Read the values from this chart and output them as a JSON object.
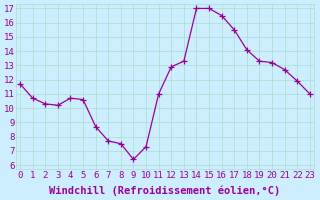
{
  "x": [
    0,
    1,
    2,
    3,
    4,
    5,
    6,
    7,
    8,
    9,
    10,
    11,
    12,
    13,
    14,
    15,
    16,
    17,
    18,
    19,
    20,
    21,
    22,
    23
  ],
  "y": [
    11.7,
    10.7,
    10.3,
    10.2,
    10.7,
    10.6,
    8.7,
    7.7,
    7.5,
    6.4,
    7.3,
    11.0,
    12.9,
    13.3,
    17.0,
    17.0,
    16.5,
    15.5,
    14.1,
    13.3,
    13.2,
    12.7,
    11.9,
    11.0
  ],
  "xlim": [
    0,
    23
  ],
  "ylim": [
    6,
    17
  ],
  "yticks": [
    6,
    7,
    8,
    9,
    10,
    11,
    12,
    13,
    14,
    15,
    16,
    17
  ],
  "xticks": [
    0,
    1,
    2,
    3,
    4,
    5,
    6,
    7,
    8,
    9,
    10,
    11,
    12,
    13,
    14,
    15,
    16,
    17,
    18,
    19,
    20,
    21,
    22,
    23
  ],
  "xlabel": "Windchill (Refroidissement éolien,°C)",
  "line_color": "#990099",
  "marker": "+",
  "bg_color": "#cceeff",
  "grid_color": "#aaddcc",
  "tick_color": "#990099",
  "label_color": "#990099",
  "tick_fontsize": 6.5,
  "xlabel_fontsize": 7.5
}
